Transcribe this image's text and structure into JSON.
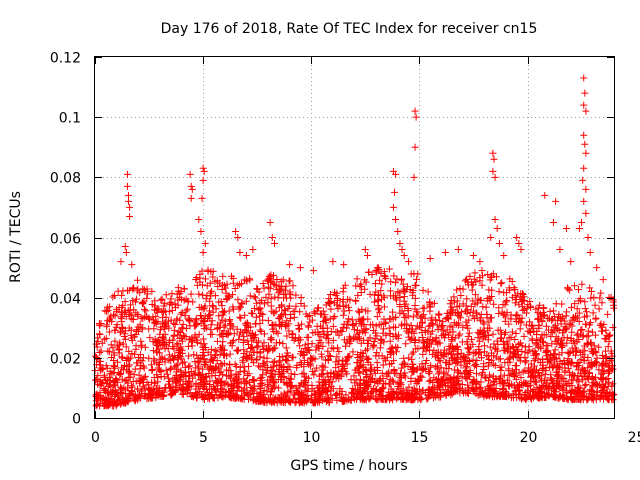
{
  "chart_data": {
    "type": "scatter",
    "title": "Day 176 of 2018, Rate Of TEC Index for receiver cn15",
    "xlabel": "GPS time / hours",
    "ylabel": "ROTI / TECUs",
    "xlim": [
      0,
      24
    ],
    "ylim": [
      0,
      0.12
    ],
    "xticks": [
      0,
      5,
      10,
      15,
      20,
      25
    ],
    "xtick_labels": [
      "0",
      "5",
      "10",
      "15",
      "20",
      "25"
    ],
    "yticks": [
      0,
      0.02,
      0.04,
      0.06,
      0.08,
      0.1,
      0.12
    ],
    "ytick_labels": [
      "0",
      "0.02",
      "0.04",
      "0.06",
      "0.08",
      "0.1",
      "0.12"
    ],
    "grid": true,
    "marker": "+",
    "color": "#ff0000",
    "series": [
      {
        "name": "ROTI",
        "points": [
          [
            1.5,
            0.081
          ],
          [
            1.5,
            0.077
          ],
          [
            1.55,
            0.074
          ],
          [
            1.55,
            0.072
          ],
          [
            1.6,
            0.07
          ],
          [
            1.6,
            0.067
          ],
          [
            1.4,
            0.057
          ],
          [
            1.45,
            0.055
          ],
          [
            1.2,
            0.052
          ],
          [
            1.7,
            0.051
          ],
          [
            4.4,
            0.081
          ],
          [
            4.45,
            0.077
          ],
          [
            4.5,
            0.076
          ],
          [
            4.45,
            0.073
          ],
          [
            4.8,
            0.066
          ],
          [
            4.9,
            0.062
          ],
          [
            5.0,
            0.083
          ],
          [
            5.05,
            0.082
          ],
          [
            5.0,
            0.079
          ],
          [
            4.95,
            0.073
          ],
          [
            5.1,
            0.058
          ],
          [
            5.0,
            0.055
          ],
          [
            6.5,
            0.062
          ],
          [
            6.6,
            0.06
          ],
          [
            6.7,
            0.055
          ],
          [
            7.0,
            0.054
          ],
          [
            8.1,
            0.065
          ],
          [
            8.2,
            0.06
          ],
          [
            8.3,
            0.058
          ],
          [
            7.3,
            0.056
          ],
          [
            9.0,
            0.051
          ],
          [
            9.5,
            0.05
          ],
          [
            10.1,
            0.049
          ],
          [
            11.0,
            0.052
          ],
          [
            11.5,
            0.051
          ],
          [
            12.5,
            0.056
          ],
          [
            12.6,
            0.054
          ],
          [
            13.1,
            0.05
          ],
          [
            13.8,
            0.082
          ],
          [
            13.9,
            0.081
          ],
          [
            13.85,
            0.075
          ],
          [
            13.8,
            0.07
          ],
          [
            13.9,
            0.066
          ],
          [
            14.0,
            0.062
          ],
          [
            14.1,
            0.058
          ],
          [
            14.2,
            0.056
          ],
          [
            14.3,
            0.054
          ],
          [
            14.5,
            0.052
          ],
          [
            14.8,
            0.102
          ],
          [
            14.85,
            0.1
          ],
          [
            14.8,
            0.09
          ],
          [
            14.75,
            0.08
          ],
          [
            15.5,
            0.053
          ],
          [
            16.2,
            0.055
          ],
          [
            16.8,
            0.056
          ],
          [
            17.5,
            0.054
          ],
          [
            17.8,
            0.052
          ],
          [
            18.4,
            0.088
          ],
          [
            18.45,
            0.086
          ],
          [
            18.4,
            0.082
          ],
          [
            18.5,
            0.08
          ],
          [
            18.5,
            0.066
          ],
          [
            18.6,
            0.063
          ],
          [
            18.3,
            0.06
          ],
          [
            18.7,
            0.058
          ],
          [
            18.9,
            0.054
          ],
          [
            19.5,
            0.06
          ],
          [
            19.6,
            0.058
          ],
          [
            19.7,
            0.056
          ],
          [
            20.8,
            0.074
          ],
          [
            21.3,
            0.072
          ],
          [
            21.2,
            0.065
          ],
          [
            21.8,
            0.063
          ],
          [
            21.5,
            0.056
          ],
          [
            22.0,
            0.052
          ],
          [
            22.6,
            0.113
          ],
          [
            22.65,
            0.108
          ],
          [
            22.6,
            0.104
          ],
          [
            22.7,
            0.102
          ],
          [
            22.6,
            0.094
          ],
          [
            22.65,
            0.091
          ],
          [
            22.7,
            0.088
          ],
          [
            22.6,
            0.083
          ],
          [
            22.55,
            0.079
          ],
          [
            22.7,
            0.076
          ],
          [
            22.6,
            0.072
          ],
          [
            22.7,
            0.068
          ],
          [
            22.5,
            0.065
          ],
          [
            22.4,
            0.063
          ],
          [
            22.8,
            0.06
          ],
          [
            22.9,
            0.055
          ],
          [
            23.2,
            0.05
          ],
          [
            23.5,
            0.046
          ]
        ]
      }
    ],
    "activity_profile": {
      "hours": [
        0,
        1,
        2,
        3,
        4,
        5,
        6,
        7,
        8,
        9,
        10,
        11,
        12,
        13,
        14,
        15,
        16,
        17,
        18,
        19,
        20,
        21,
        22,
        23,
        24
      ],
      "upper_envelope": [
        0.032,
        0.042,
        0.046,
        0.04,
        0.044,
        0.05,
        0.048,
        0.046,
        0.048,
        0.046,
        0.035,
        0.044,
        0.046,
        0.05,
        0.05,
        0.048,
        0.034,
        0.046,
        0.05,
        0.048,
        0.04,
        0.036,
        0.045,
        0.044,
        0.04
      ],
      "lower_envelope": [
        0.004,
        0.004,
        0.006,
        0.007,
        0.008,
        0.006,
        0.007,
        0.006,
        0.005,
        0.005,
        0.005,
        0.005,
        0.006,
        0.006,
        0.006,
        0.006,
        0.007,
        0.008,
        0.007,
        0.007,
        0.006,
        0.007,
        0.006,
        0.006,
        0.006
      ]
    }
  }
}
